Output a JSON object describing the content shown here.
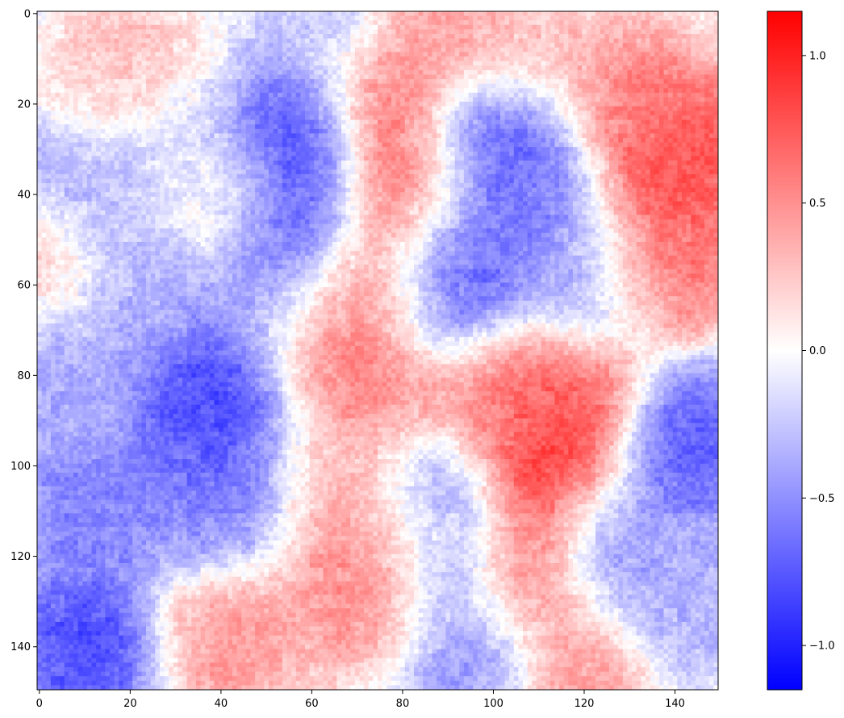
{
  "chart_data": {
    "type": "heatmap",
    "title": "",
    "xlabel": "",
    "ylabel": "",
    "grid": false,
    "colormap": "bwr",
    "cmap_colors": {
      "min": "#0000ff",
      "mid": "#ffffff",
      "max": "#ff0000"
    },
    "nx": 150,
    "ny": 150,
    "xlim": [
      -0.5,
      149.5
    ],
    "ylim": [
      149.5,
      -0.5
    ],
    "y_inverted": true,
    "vmin": -1.15,
    "vmax": 1.15,
    "xticks": [
      0,
      20,
      40,
      60,
      80,
      100,
      120,
      140
    ],
    "xtick_labels": [
      "0",
      "20",
      "40",
      "60",
      "80",
      "100",
      "120",
      "140"
    ],
    "yticks": [
      0,
      20,
      40,
      60,
      80,
      100,
      120,
      140
    ],
    "ytick_labels": [
      "0",
      "20",
      "40",
      "60",
      "80",
      "100",
      "120",
      "140"
    ],
    "colorbar": {
      "ticks": [
        1.0,
        0.5,
        0.0,
        -0.5,
        -1.0
      ],
      "tick_labels": [
        "1.0",
        "0.5",
        "0.0",
        "−0.5",
        "−1.0"
      ],
      "placement": "right"
    },
    "features": [
      {
        "x": 55,
        "y": 28,
        "value": -1.0
      },
      {
        "x": 56,
        "y": 45,
        "value": -0.9
      },
      {
        "x": 82,
        "y": 40,
        "value": 1.0
      },
      {
        "x": 78,
        "y": 20,
        "value": 0.7
      },
      {
        "x": 76,
        "y": 60,
        "value": 0.75
      },
      {
        "x": 73,
        "y": 80,
        "value": 0.65
      },
      {
        "x": 65,
        "y": 70,
        "value": 0.55
      },
      {
        "x": 88,
        "y": 62,
        "value": -1.0
      },
      {
        "x": 93,
        "y": 48,
        "value": -0.85
      },
      {
        "x": 100,
        "y": 28,
        "value": -1.0
      },
      {
        "x": 108,
        "y": 38,
        "value": -0.6
      },
      {
        "x": 110,
        "y": 102,
        "value": 1.05
      },
      {
        "x": 105,
        "y": 122,
        "value": 1.0
      },
      {
        "x": 115,
        "y": 85,
        "value": 0.85
      },
      {
        "x": 100,
        "y": 85,
        "value": 0.6
      },
      {
        "x": 140,
        "y": 32,
        "value": 0.95
      },
      {
        "x": 138,
        "y": 55,
        "value": 0.75
      },
      {
        "x": 131,
        "y": 20,
        "value": 0.6
      },
      {
        "x": 38,
        "y": 85,
        "value": -0.95
      },
      {
        "x": 42,
        "y": 98,
        "value": -0.85
      },
      {
        "x": 35,
        "y": 110,
        "value": -0.55
      },
      {
        "x": 87,
        "y": 108,
        "value": -0.95
      },
      {
        "x": 92,
        "y": 125,
        "value": -0.8
      },
      {
        "x": 78,
        "y": 112,
        "value": 0.75
      },
      {
        "x": 75,
        "y": 128,
        "value": 0.65
      },
      {
        "x": 12,
        "y": 140,
        "value": -0.95
      },
      {
        "x": 10,
        "y": 110,
        "value": -0.65
      },
      {
        "x": 6,
        "y": 78,
        "value": -0.45
      },
      {
        "x": 40,
        "y": 138,
        "value": 0.55
      },
      {
        "x": 21,
        "y": 15,
        "value": 0.35
      },
      {
        "x": 40,
        "y": 40,
        "value": 0.25
      },
      {
        "x": 22,
        "y": 60,
        "value": -0.45
      },
      {
        "x": 10,
        "y": 40,
        "value": -0.45
      },
      {
        "x": 145,
        "y": 95,
        "value": -0.85
      },
      {
        "x": 125,
        "y": 118,
        "value": -0.55
      },
      {
        "x": 120,
        "y": 60,
        "value": -0.45
      },
      {
        "x": 52,
        "y": 60,
        "value": -0.55
      },
      {
        "x": 63,
        "y": 2,
        "value": -0.3
      },
      {
        "x": 88,
        "y": 2,
        "value": 0.5
      },
      {
        "x": 118,
        "y": 145,
        "value": 0.5
      },
      {
        "x": 62,
        "y": 100,
        "value": 0.35
      },
      {
        "x": 2,
        "y": 55,
        "value": 0.35
      },
      {
        "x": 95,
        "y": 145,
        "value": -0.55
      },
      {
        "x": 142,
        "y": 130,
        "value": -0.4
      },
      {
        "x": 108,
        "y": 10,
        "value": 0.35
      },
      {
        "x": 30,
        "y": 28,
        "value": -0.3
      }
    ]
  }
}
